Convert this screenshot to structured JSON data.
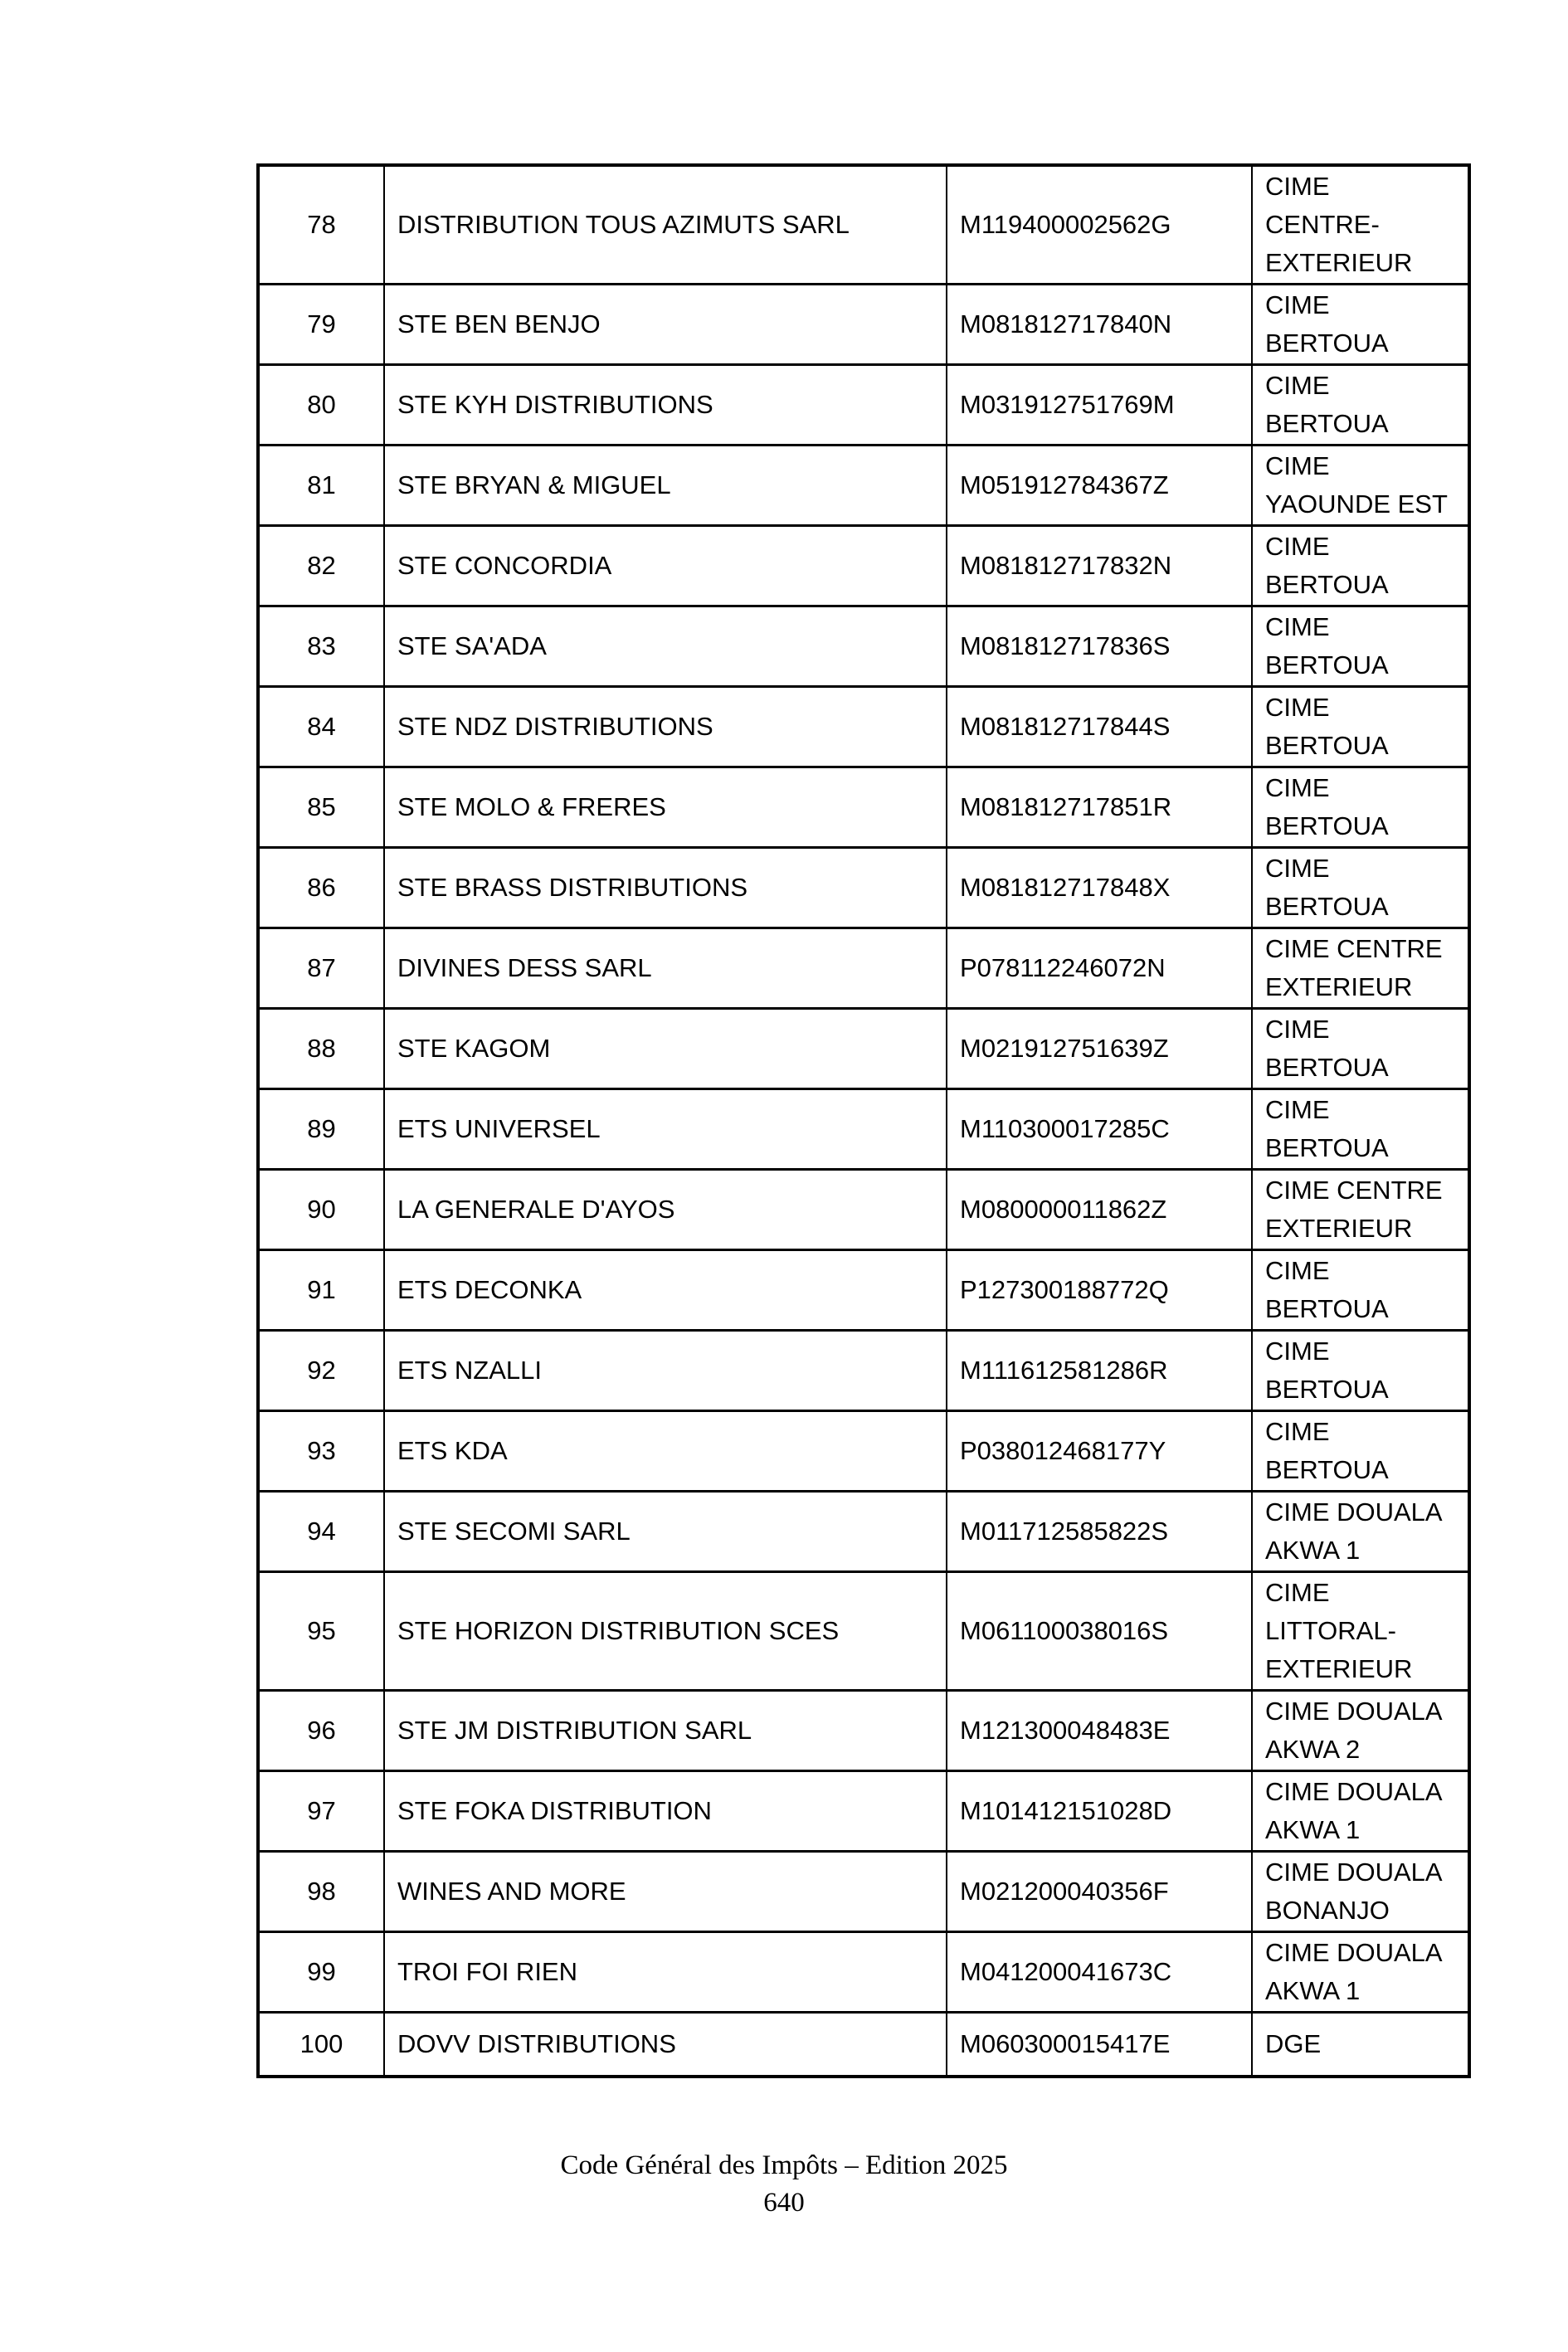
{
  "document": {
    "footer": {
      "title": "Code Général des Impôts – Edition 2025",
      "page_number": "640"
    }
  },
  "table": {
    "rows": [
      {
        "num": "78",
        "name": "DISTRIBUTION TOUS AZIMUTS SARL",
        "id": "M119400002562G",
        "centre": "CIME\nCENTRE-\nEXTERIEUR"
      },
      {
        "num": "79",
        "name": "STE BEN BENJO",
        "id": "M081812717840N",
        "centre": "CIME\nBERTOUA"
      },
      {
        "num": "80",
        "name": "STE KYH DISTRIBUTIONS",
        "id": "M031912751769M",
        "centre": "CIME\nBERTOUA"
      },
      {
        "num": "81",
        "name": "STE BRYAN & MIGUEL",
        "id": "M051912784367Z",
        "centre": "CIME\nYAOUNDE EST"
      },
      {
        "num": "82",
        "name": "STE CONCORDIA",
        "id": "M081812717832N",
        "centre": "CIME\nBERTOUA"
      },
      {
        "num": "83",
        "name": "STE SA'ADA",
        "id": "M081812717836S",
        "centre": "CIME\nBERTOUA"
      },
      {
        "num": "84",
        "name": "STE NDZ DISTRIBUTIONS",
        "id": "M081812717844S",
        "centre": "CIME\nBERTOUA"
      },
      {
        "num": "85",
        "name": "STE MOLO & FRERES",
        "id": "M081812717851R",
        "centre": "CIME\nBERTOUA"
      },
      {
        "num": "86",
        "name": "STE BRASS DISTRIBUTIONS",
        "id": "M081812717848X",
        "centre": "CIME\nBERTOUA"
      },
      {
        "num": "87",
        "name": "DIVINES DESS SARL",
        "id": "P078112246072N",
        "centre": "CIME CENTRE\nEXTERIEUR"
      },
      {
        "num": "88",
        "name": "STE KAGOM",
        "id": "M021912751639Z",
        "centre": "CIME\nBERTOUA"
      },
      {
        "num": "89",
        "name": "ETS UNIVERSEL",
        "id": "M110300017285C",
        "centre": "CIME\nBERTOUA"
      },
      {
        "num": "90",
        "name": "LA GENERALE D'AYOS",
        "id": "M080000011862Z",
        "centre": "CIME CENTRE\nEXTERIEUR"
      },
      {
        "num": "91",
        "name": "ETS DECONKA",
        "id": "P127300188772Q",
        "centre": "CIME\nBERTOUA"
      },
      {
        "num": "92",
        "name": "ETS NZALLI",
        "id": "M111612581286R",
        "centre": "CIME\nBERTOUA"
      },
      {
        "num": "93",
        "name": "ETS KDA",
        "id": "P038012468177Y",
        "centre": "CIME\nBERTOUA"
      },
      {
        "num": "94",
        "name": "STE SECOMI SARL",
        "id": "M011712585822S",
        "centre": "CIME DOUALA\nAKWA 1"
      },
      {
        "num": "95",
        "name": "STE HORIZON DISTRIBUTION SCES",
        "id": "M061100038016S",
        "centre": "CIME\nLITTORAL-\nEXTERIEUR"
      },
      {
        "num": "96",
        "name": "STE JM DISTRIBUTION SARL",
        "id": "M121300048483E",
        "centre": "CIME DOUALA\nAKWA 2"
      },
      {
        "num": "97",
        "name": "STE FOKA DISTRIBUTION",
        "id": "M101412151028D",
        "centre": "CIME DOUALA\nAKWA 1"
      },
      {
        "num": "98",
        "name": "WINES AND MORE",
        "id": "M021200040356F",
        "centre": "CIME DOUALA\nBONANJO"
      },
      {
        "num": "99",
        "name": "TROI FOI RIEN",
        "id": "M041200041673C",
        "centre": "CIME DOUALA\nAKWA 1"
      },
      {
        "num": "100",
        "name": "DOVV DISTRIBUTIONS",
        "id": "M060300015417E",
        "centre": "DGE"
      }
    ]
  }
}
